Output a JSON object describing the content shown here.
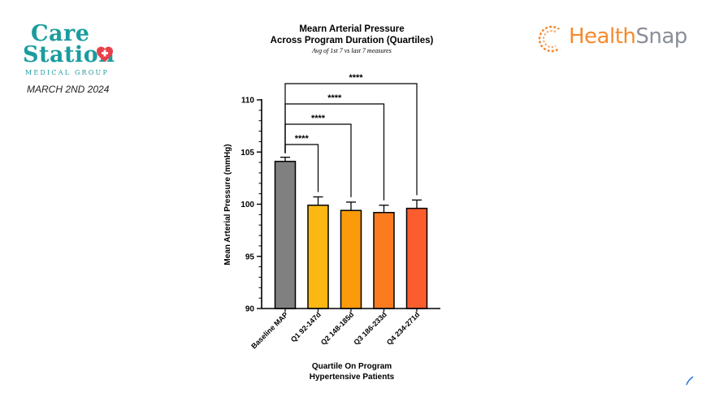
{
  "header": {
    "brand_left": {
      "care": "Care",
      "station": "Station",
      "medical_group": "MEDICAL GROUP"
    },
    "date": "MARCH 2ND 2024",
    "brand_right": {
      "part1": "Health",
      "part2": "Snap"
    },
    "colors": {
      "carestation_teal": "#1a9c9e",
      "heart_red": "#e8404a",
      "healthsnap_orange": "#f58a2e",
      "healthsnap_gray": "#8a8f99"
    }
  },
  "chart_data": {
    "type": "bar",
    "title_line1": "Mearn Arterial Pressure",
    "title_line2": "Across Program Duration (Quartiles)",
    "subtitle": "Avg of 1st 7 vs last 7 measures",
    "xlabel_line1": "Quartile On Program",
    "xlabel_line2": "Hypertensive Patients",
    "ylabel": "Mean Arterial Pressure (mmHg)",
    "ylim": [
      90,
      110
    ],
    "yticks": [
      "90",
      "95",
      "100",
      "105",
      "110"
    ],
    "categories": [
      "Baseline MAP",
      "Q1 92-147d",
      "Q2 148-185d",
      "Q3 186-233d",
      "Q4 234-271d"
    ],
    "values": [
      104.1,
      99.9,
      99.4,
      99.2,
      99.6
    ],
    "error_upper": [
      104.5,
      100.7,
      100.2,
      99.9,
      100.4
    ],
    "colors": [
      "#808080",
      "#fbb812",
      "#fb9b0a",
      "#fa7c1e",
      "#fb5d2e"
    ],
    "significance": [
      {
        "from": 0,
        "to": 1,
        "label": "****"
      },
      {
        "from": 0,
        "to": 2,
        "label": "****"
      },
      {
        "from": 0,
        "to": 3,
        "label": "****"
      },
      {
        "from": 0,
        "to": 4,
        "label": "****"
      }
    ],
    "grid": false,
    "legend": "none"
  }
}
